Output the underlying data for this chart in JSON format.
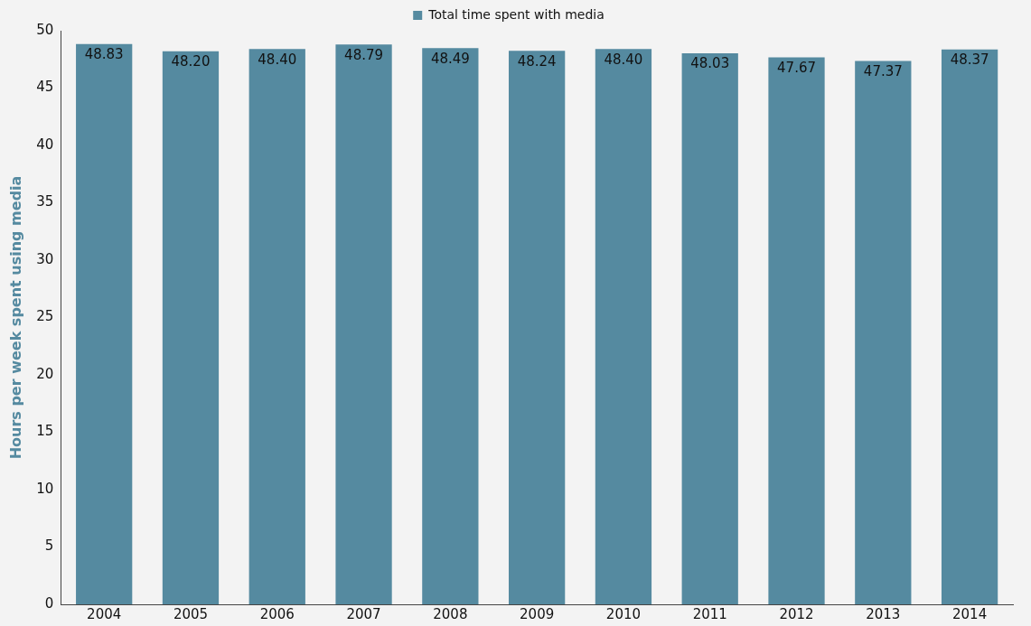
{
  "chart_data": {
    "type": "bar",
    "ylabel": "Hours per week spent using media",
    "categories": [
      "2004",
      "2005",
      "2006",
      "2007",
      "2008",
      "2009",
      "2010",
      "2011",
      "2012",
      "2013",
      "2014"
    ],
    "series": [
      {
        "name": "Total time spent with media",
        "color": "#558aa0",
        "values": [
          48.83,
          48.2,
          48.4,
          48.79,
          48.49,
          48.24,
          48.4,
          48.03,
          47.67,
          47.37,
          48.37
        ]
      }
    ],
    "value_labels": [
      "48.83",
      "48.20",
      "48.40",
      "48.79",
      "48.49",
      "48.24",
      "48.40",
      "48.03",
      "47.67",
      "47.37",
      "48.37"
    ],
    "ylim": [
      0,
      50
    ],
    "yticks": [
      0,
      5,
      10,
      15,
      20,
      25,
      30,
      35,
      40,
      45,
      50
    ],
    "grid": false,
    "legend": "top"
  }
}
